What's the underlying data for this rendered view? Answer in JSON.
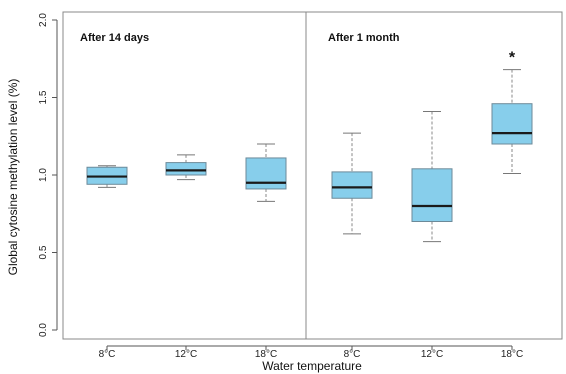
{
  "chart_data": {
    "type": "boxplot",
    "xlabel": "Water temperature",
    "ylabel": "Global cytosine methylation level (%)",
    "ylim": [
      0,
      2.0
    ],
    "yticks": [
      "0.0",
      "0.5",
      "1.0",
      "1.5",
      "2.0"
    ],
    "grid": false,
    "box_color": "#87ceeb",
    "panels": [
      {
        "title": "After 14 days",
        "categories": [
          "8°C",
          "12°C",
          "18°C"
        ],
        "boxes": [
          {
            "whisker_low": 0.92,
            "q1": 0.94,
            "median": 0.99,
            "q3": 1.05,
            "whisker_high": 1.06
          },
          {
            "whisker_low": 0.97,
            "q1": 1.0,
            "median": 1.03,
            "q3": 1.08,
            "whisker_high": 1.13
          },
          {
            "whisker_low": 0.83,
            "q1": 0.91,
            "median": 0.95,
            "q3": 1.11,
            "whisker_high": 1.2
          }
        ]
      },
      {
        "title": "After 1 month",
        "categories": [
          "8°C",
          "12°C",
          "18°C"
        ],
        "boxes": [
          {
            "whisker_low": 0.62,
            "q1": 0.85,
            "median": 0.92,
            "q3": 1.02,
            "whisker_high": 1.27
          },
          {
            "whisker_low": 0.57,
            "q1": 0.7,
            "median": 0.8,
            "q3": 1.04,
            "whisker_high": 1.41
          },
          {
            "whisker_low": 1.01,
            "q1": 1.2,
            "median": 1.27,
            "q3": 1.46,
            "whisker_high": 1.68
          }
        ],
        "annotations": [
          {
            "category": "18°C",
            "text": "*"
          }
        ]
      }
    ]
  }
}
